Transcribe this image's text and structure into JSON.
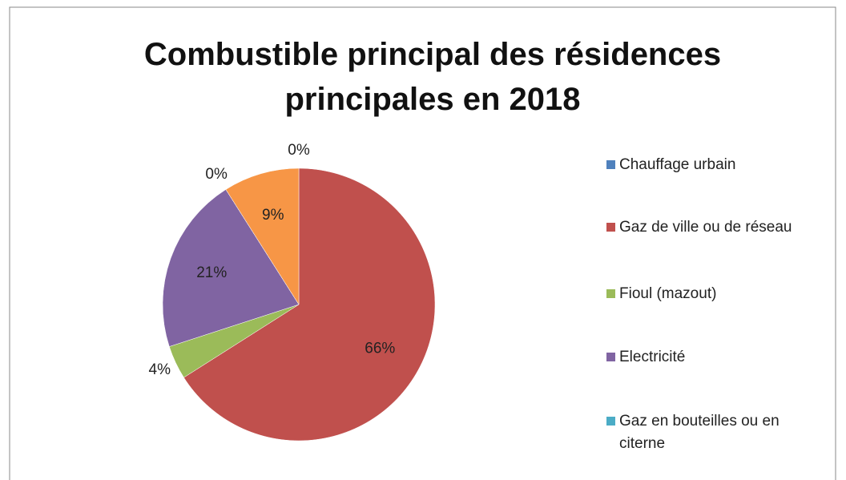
{
  "chart_data": {
    "type": "pie",
    "title": "Combustible principal des résidences principales en 2018",
    "categories": [
      "Chauffage urbain",
      "Gaz de ville ou de réseau",
      "Fioul (mazout)",
      "Electricité",
      "Gaz en bouteilles ou en citerne",
      null
    ],
    "values": [
      0,
      66,
      4,
      21,
      0,
      9
    ],
    "value_labels": [
      "0%",
      "66%",
      "4%",
      "21%",
      "0%",
      "9%"
    ],
    "colors": [
      "#4f81bd",
      "#c0504d",
      "#9bbb59",
      "#8064a2",
      "#4bacc6",
      "#f79646"
    ],
    "legend": "right"
  }
}
